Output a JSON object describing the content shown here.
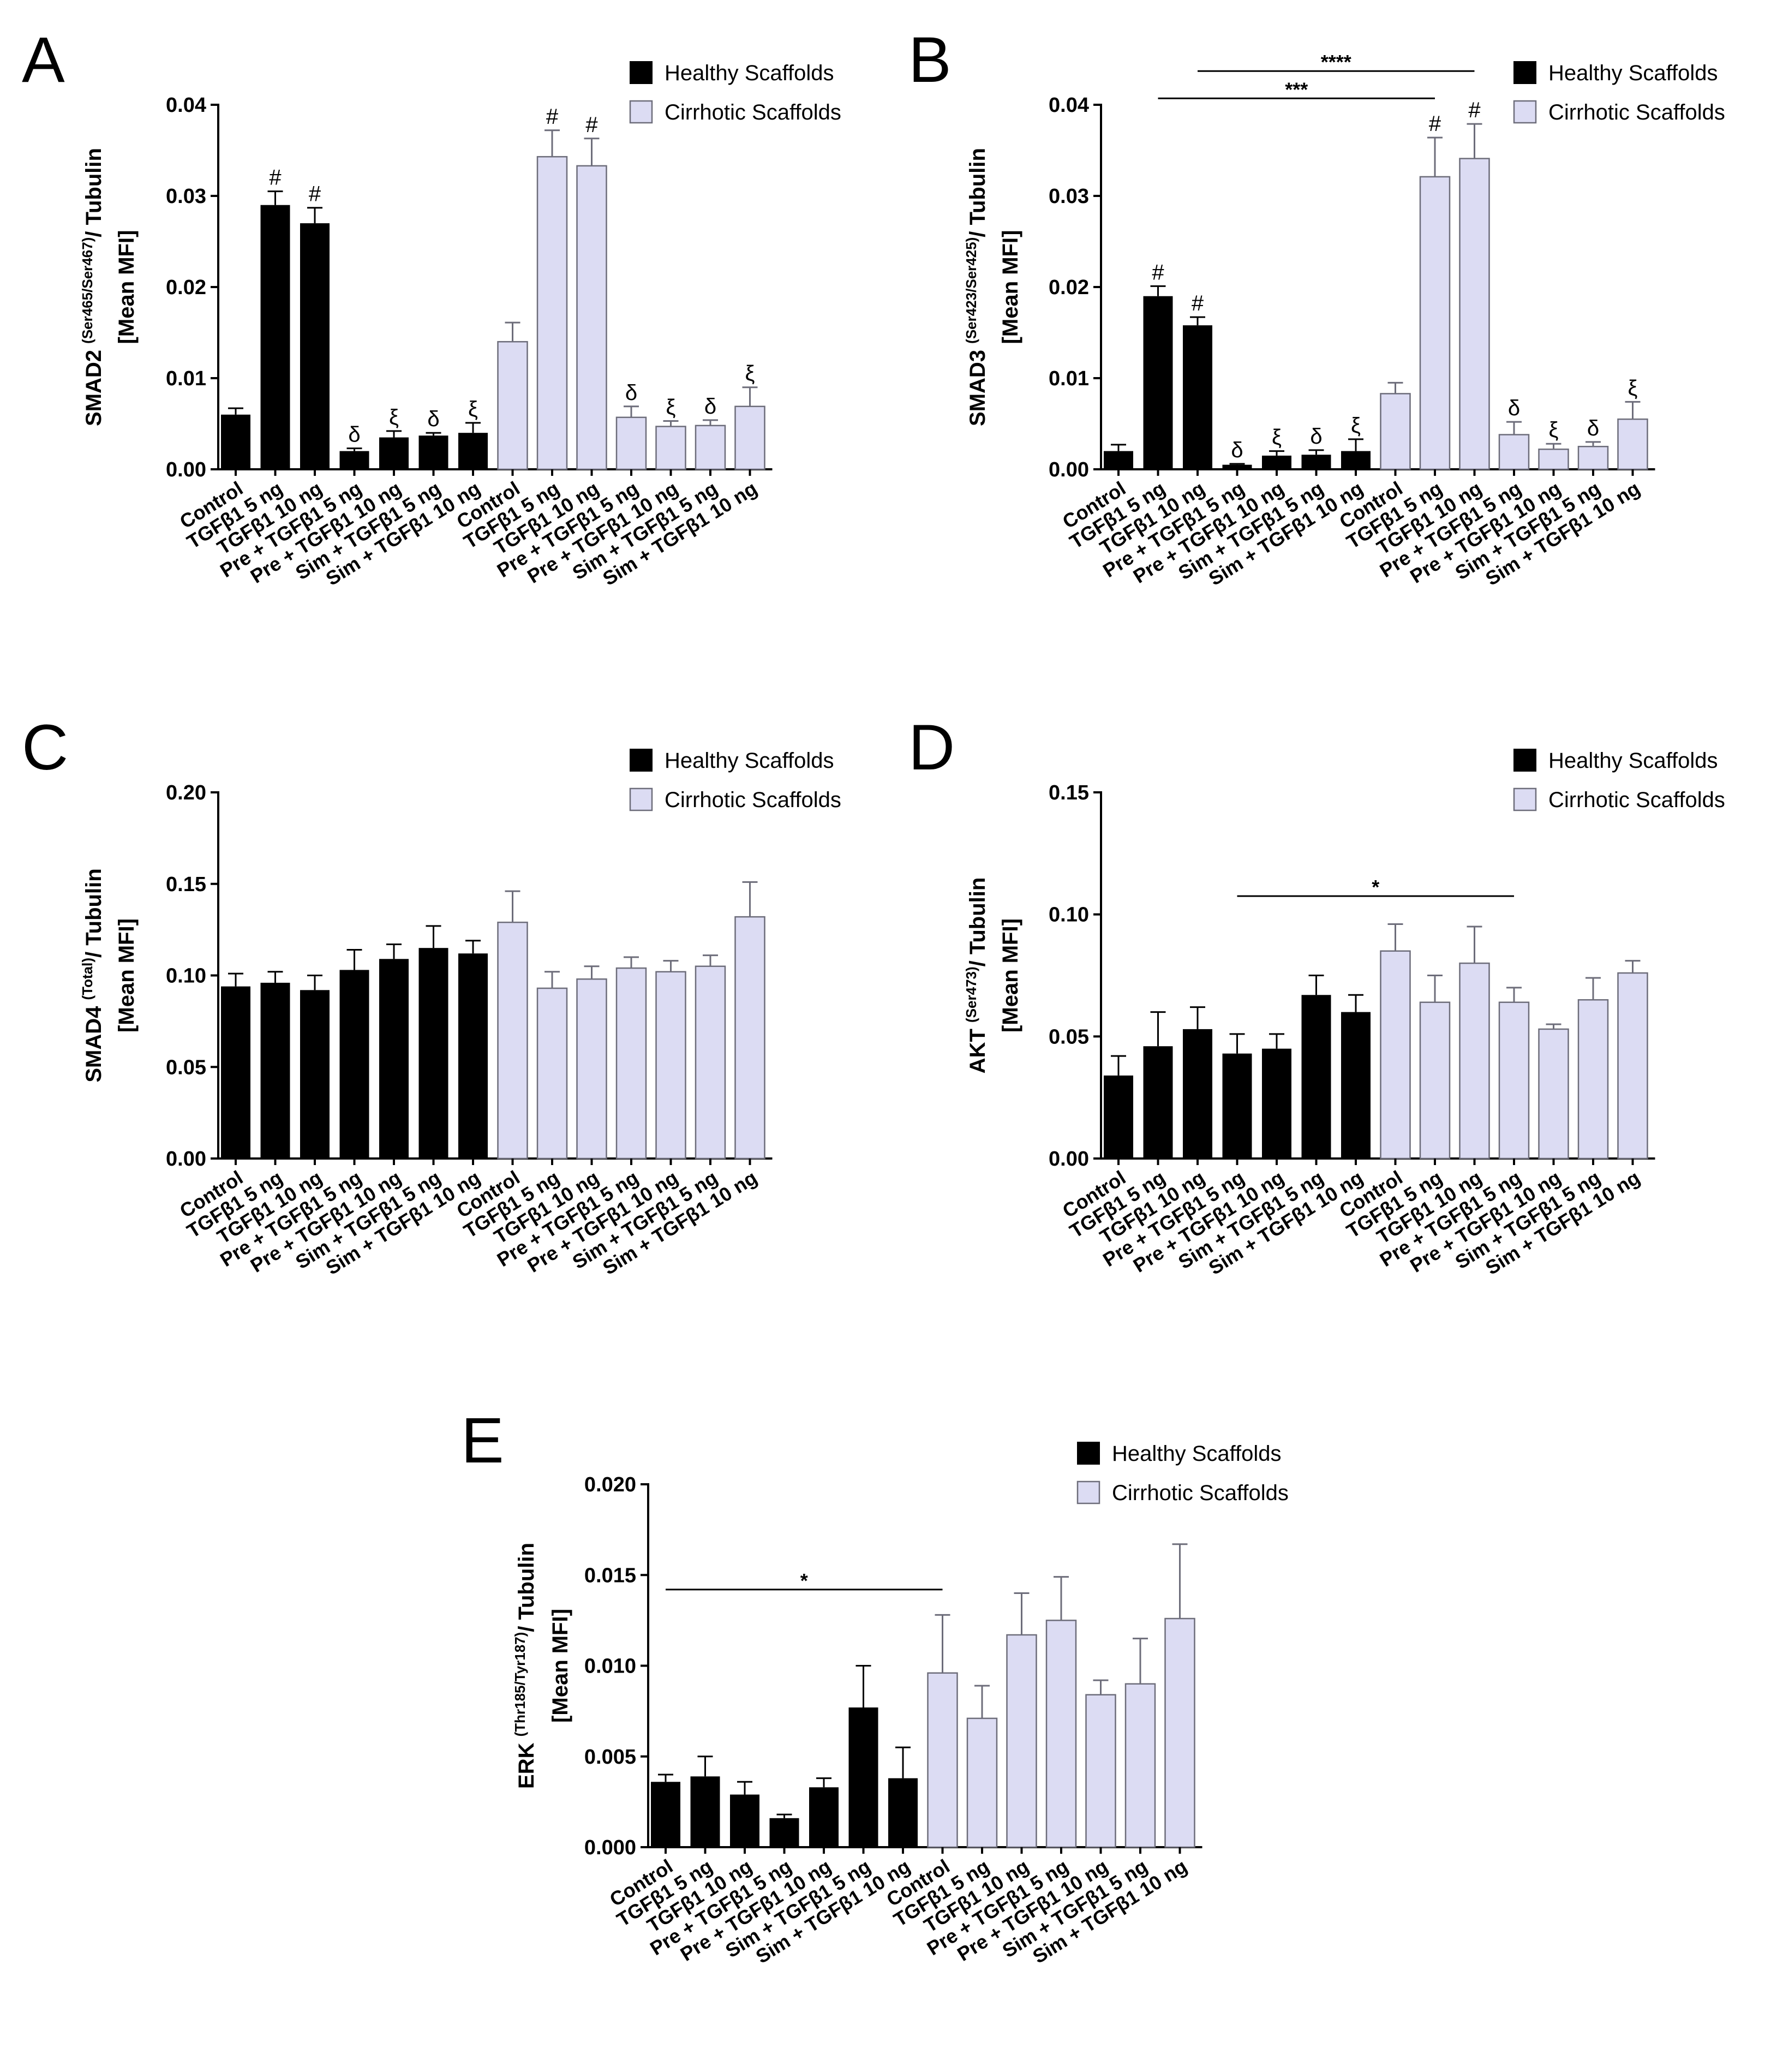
{
  "colors": {
    "healthy": "#000000",
    "cirrhotic": "#dcdcf3",
    "cirrhotic_edge": "#6d6d7a"
  },
  "legend": {
    "healthy": "Healthy Scaffolds",
    "cirrhotic": "Cirrhotic Scaffolds"
  },
  "chart_data": [
    {
      "type": "bar",
      "panel": "A",
      "categories": [
        "Control",
        "TGFβ1 5 ng",
        "TGFβ1 10 ng",
        "Pre + TGFβ1 5 ng",
        "Pre + TGFβ1 10 ng",
        "Sim + TGFβ1 5 ng",
        "Sim + TGFβ1 10 ng",
        "Control",
        "TGFβ1 5 ng",
        "TGFβ1 10 ng",
        "Pre + TGFβ1 5 ng",
        "Pre + TGFβ1 10 ng",
        "Sim + TGFβ1 5 ng",
        "Sim + TGFβ1 10 ng"
      ],
      "groups": [
        "healthy",
        "healthy",
        "healthy",
        "healthy",
        "healthy",
        "healthy",
        "healthy",
        "cirrhotic",
        "cirrhotic",
        "cirrhotic",
        "cirrhotic",
        "cirrhotic",
        "cirrhotic",
        "cirrhotic"
      ],
      "values": [
        0.006,
        0.029,
        0.027,
        0.002,
        0.0035,
        0.0037,
        0.004,
        0.014,
        0.0343,
        0.0333,
        0.0057,
        0.0047,
        0.0048,
        0.0069
      ],
      "errors": [
        0.0007,
        0.0015,
        0.0017,
        0.0003,
        0.0007,
        0.0003,
        0.0011,
        0.0021,
        0.0029,
        0.003,
        0.0012,
        0.0006,
        0.0006,
        0.0021
      ],
      "annotations": [
        "",
        "#",
        "#",
        "δ",
        "ξ",
        "δ",
        "ξ",
        "",
        "#",
        "#",
        "δ",
        "ξ",
        "δ",
        "ξ"
      ],
      "ylabel_main": "SMAD2",
      "ylabel_sup": "(Ser465/Ser467)",
      "ylabel_rest": "/ Tubulin",
      "ylabel2": "[Mean MFI]",
      "ylim": [
        0,
        0.04
      ],
      "yticks": [
        0,
        0.01,
        0.02,
        0.03,
        0.04
      ],
      "ytick_labels": [
        "0.00",
        "0.01",
        "0.02",
        "0.03",
        "0.04"
      ],
      "significance": []
    },
    {
      "type": "bar",
      "panel": "B",
      "categories": [
        "Control",
        "TGFβ1 5 ng",
        "TGFβ1 10 ng",
        "Pre + TGFβ1 5 ng",
        "Pre + TGFβ1 10 ng",
        "Sim + TGFβ1 5 ng",
        "Sim + TGFβ1 10 ng",
        "Control",
        "TGFβ1 5 ng",
        "TGFβ1 10 ng",
        "Pre + TGFβ1 5 ng",
        "Pre + TGFβ1 10 ng",
        "Sim + TGFβ1 5 ng",
        "Sim + TGFβ1 10 ng"
      ],
      "groups": [
        "healthy",
        "healthy",
        "healthy",
        "healthy",
        "healthy",
        "healthy",
        "healthy",
        "cirrhotic",
        "cirrhotic",
        "cirrhotic",
        "cirrhotic",
        "cirrhotic",
        "cirrhotic",
        "cirrhotic"
      ],
      "values": [
        0.002,
        0.019,
        0.0158,
        0.0005,
        0.0015,
        0.0016,
        0.002,
        0.0083,
        0.0321,
        0.0341,
        0.0038,
        0.0022,
        0.0025,
        0.0055
      ],
      "errors": [
        0.0007,
        0.0011,
        0.0009,
        0.0001,
        0.0005,
        0.0005,
        0.0013,
        0.0012,
        0.0043,
        0.0038,
        0.0014,
        0.0006,
        0.0005,
        0.0019
      ],
      "annotations": [
        "",
        "#",
        "#",
        "δ",
        "ξ",
        "δ",
        "ξ",
        "",
        "#",
        "#",
        "δ",
        "ξ",
        "δ",
        "ξ"
      ],
      "ylabel_main": "SMAD3",
      "ylabel_sup": "(Ser423/Ser425)",
      "ylabel_rest": "/ Tubulin",
      "ylabel2": "[Mean MFI]",
      "ylim": [
        0,
        0.04
      ],
      "yticks": [
        0,
        0.01,
        0.02,
        0.03,
        0.04
      ],
      "ytick_labels": [
        "0.00",
        "0.01",
        "0.02",
        "0.03",
        "0.04"
      ],
      "significance": [
        {
          "from": 1,
          "to": 8,
          "label": "***",
          "y": 0.0407
        },
        {
          "from": 2,
          "to": 9,
          "label": "****",
          "y": 0.0437
        }
      ]
    },
    {
      "type": "bar",
      "panel": "C",
      "categories": [
        "Control",
        "TGFβ1 5 ng",
        "TGFβ1 10 ng",
        "Pre + TGFβ1 5 ng",
        "Pre + TGFβ1 10 ng",
        "Sim + TGFβ1 5 ng",
        "Sim + TGFβ1 10 ng",
        "Control",
        "TGFβ1 5 ng",
        "TGFβ1 10 ng",
        "Pre + TGFβ1 5 ng",
        "Pre + TGFβ1 10 ng",
        "Sim + TGFβ1 5 ng",
        "Sim + TGFβ1 10 ng"
      ],
      "groups": [
        "healthy",
        "healthy",
        "healthy",
        "healthy",
        "healthy",
        "healthy",
        "healthy",
        "cirrhotic",
        "cirrhotic",
        "cirrhotic",
        "cirrhotic",
        "cirrhotic",
        "cirrhotic",
        "cirrhotic"
      ],
      "values": [
        0.094,
        0.096,
        0.092,
        0.103,
        0.109,
        0.115,
        0.112,
        0.129,
        0.093,
        0.098,
        0.104,
        0.102,
        0.105,
        0.132
      ],
      "errors": [
        0.007,
        0.006,
        0.008,
        0.011,
        0.008,
        0.012,
        0.007,
        0.017,
        0.009,
        0.007,
        0.006,
        0.006,
        0.006,
        0.019
      ],
      "annotations": [],
      "ylabel_main": "SMAD4",
      "ylabel_sup": "(Total)",
      "ylabel_rest": "/ Tubulin",
      "ylabel2": "[Mean MFI]",
      "ylim": [
        0,
        0.2
      ],
      "yticks": [
        0,
        0.05,
        0.1,
        0.15,
        0.2
      ],
      "ytick_labels": [
        "0.00",
        "0.05",
        "0.10",
        "0.15",
        "0.20"
      ],
      "significance": []
    },
    {
      "type": "bar",
      "panel": "D",
      "categories": [
        "Control",
        "TGFβ1 5 ng",
        "TGFβ1 10 ng",
        "Pre + TGFβ1 5 ng",
        "Pre + TGFβ1 10 ng",
        "Sim + TGFβ1 5 ng",
        "Sim + TGFβ1 10 ng",
        "Control",
        "TGFβ1 5 ng",
        "TGFβ1 10 ng",
        "Pre + TGFβ1 5 ng",
        "Pre + TGFβ1 10 ng",
        "Sim + TGFβ1 5 ng",
        "Sim + TGFβ1 10 ng"
      ],
      "groups": [
        "healthy",
        "healthy",
        "healthy",
        "healthy",
        "healthy",
        "healthy",
        "healthy",
        "cirrhotic",
        "cirrhotic",
        "cirrhotic",
        "cirrhotic",
        "cirrhotic",
        "cirrhotic",
        "cirrhotic"
      ],
      "values": [
        0.034,
        0.046,
        0.053,
        0.043,
        0.045,
        0.067,
        0.06,
        0.085,
        0.064,
        0.08,
        0.064,
        0.053,
        0.065,
        0.076
      ],
      "errors": [
        0.008,
        0.014,
        0.009,
        0.008,
        0.006,
        0.008,
        0.007,
        0.011,
        0.011,
        0.015,
        0.006,
        0.002,
        0.009,
        0.005
      ],
      "annotations": [],
      "ylabel_main": "AKT",
      "ylabel_sup": "(Ser473)",
      "ylabel_rest": "/ Tubulin",
      "ylabel2": "[Mean MFI]",
      "ylim": [
        0,
        0.15
      ],
      "yticks": [
        0,
        0.05,
        0.1,
        0.15
      ],
      "ytick_labels": [
        "0.00",
        "0.05",
        "0.10",
        "0.15"
      ],
      "significance": [
        {
          "from": 3,
          "to": 10,
          "label": "*",
          "y": 0.1075
        }
      ]
    },
    {
      "type": "bar",
      "panel": "E",
      "categories": [
        "Control",
        "TGFβ1 5 ng",
        "TGFβ1 10 ng",
        "Pre + TGFβ1 5 ng",
        "Pre + TGFβ1 10 ng",
        "Sim + TGFβ1 5 ng",
        "Sim + TGFβ1 10 ng",
        "Control",
        "TGFβ1 5 ng",
        "TGFβ1 10 ng",
        "Pre + TGFβ1 5 ng",
        "Pre + TGFβ1 10 ng",
        "Sim + TGFβ1 5 ng",
        "Sim + TGFβ1 10 ng"
      ],
      "groups": [
        "healthy",
        "healthy",
        "healthy",
        "healthy",
        "healthy",
        "healthy",
        "healthy",
        "cirrhotic",
        "cirrhotic",
        "cirrhotic",
        "cirrhotic",
        "cirrhotic",
        "cirrhotic",
        "cirrhotic"
      ],
      "values": [
        0.0036,
        0.0039,
        0.0029,
        0.0016,
        0.0033,
        0.0077,
        0.0038,
        0.0096,
        0.0071,
        0.0117,
        0.0125,
        0.0084,
        0.009,
        0.0126
      ],
      "errors": [
        0.0004,
        0.0011,
        0.0007,
        0.0002,
        0.0005,
        0.0023,
        0.0017,
        0.0032,
        0.0018,
        0.0023,
        0.0024,
        0.0008,
        0.0025,
        0.0041
      ],
      "annotations": [],
      "ylabel_main": "ERK",
      "ylabel_sup": "(Thr185/Tyr187)",
      "ylabel_rest": "/ Tubulin",
      "ylabel2": "[Mean MFI]",
      "ylim": [
        0,
        0.02
      ],
      "yticks": [
        0,
        0.005,
        0.01,
        0.015,
        0.02
      ],
      "ytick_labels": [
        "0.000",
        "0.005",
        "0.010",
        "0.015",
        "0.020"
      ],
      "significance": [
        {
          "from": 0,
          "to": 7,
          "label": "*",
          "y": 0.0142
        }
      ]
    }
  ]
}
